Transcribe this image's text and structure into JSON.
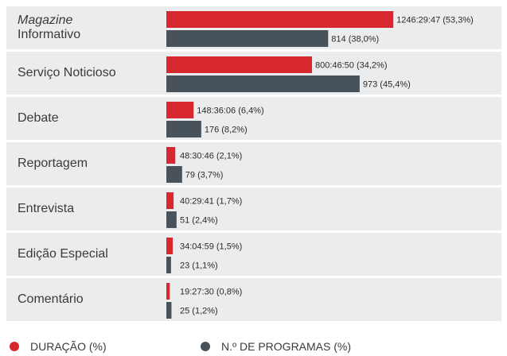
{
  "chart_data": {
    "type": "bar",
    "categories": [
      "Magazine Informativo",
      "Serviço Noticioso",
      "Debate",
      "Reportagem",
      "Entrevista",
      "Edição Especial",
      "Comentário"
    ],
    "series": [
      {
        "name": "DURAÇÃO (%)",
        "color": "#d7282f",
        "values": [
          53.3,
          34.2,
          6.4,
          2.1,
          1.7,
          1.5,
          0.8
        ],
        "value_labels": [
          "1246:29:47 (53,3%)",
          "800:46:50 (34,2%)",
          "148:36:06 (6,4%)",
          "48:30:46 (2,1%)",
          "40:29:41 (1,7%)",
          "34:04:59 (1,5%)",
          "19:27:30 (0,8%)"
        ]
      },
      {
        "name": "N.º DE PROGRAMAS (%)",
        "color": "#48525a",
        "values": [
          38.0,
          45.4,
          8.2,
          3.7,
          2.4,
          1.1,
          1.2
        ],
        "value_labels": [
          "814 (38,0%)",
          "973 (45,4%)",
          "176 (8,2%)",
          "79 (3,7%)",
          "51 (2,4%)",
          "23 (1,1%)",
          "25 (1,2%)"
        ]
      }
    ]
  }
}
